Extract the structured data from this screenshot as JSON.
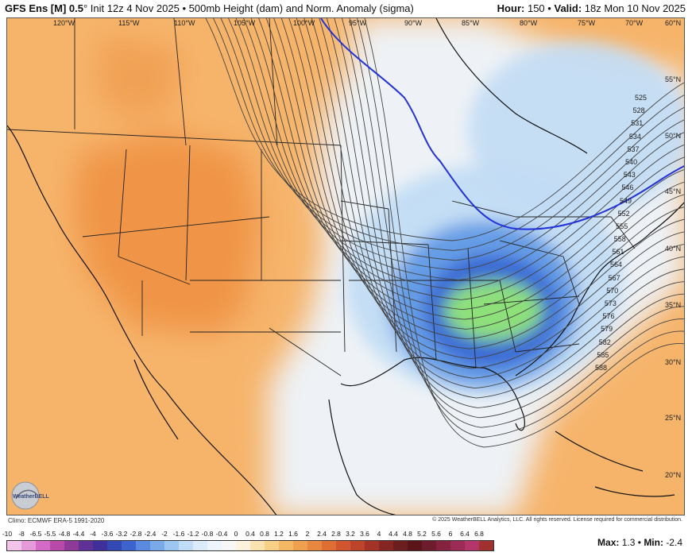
{
  "header": {
    "model": "GFS Ens [M] 0.5",
    "degree": "°",
    "init": "Init 12z 4 Nov 2025",
    "bullet": "•",
    "product": "500mb Height (dam) and Norm. Anomaly (sigma)",
    "hour_label": "Hour:",
    "hour_value": "150",
    "valid_label": "Valid:",
    "valid_value": "18z Mon 10 Nov 2025"
  },
  "longitudes": [
    "120°W",
    "115°W",
    "110°W",
    "105°W",
    "100°W",
    "95°W",
    "90°W",
    "85°W",
    "80°W",
    "75°W",
    "70°W"
  ],
  "latitudes": [
    "60°N",
    "55°N",
    "50°N",
    "45°N",
    "40°N",
    "35°N",
    "30°N",
    "25°N",
    "20°N"
  ],
  "contour_labels": [
    "525",
    "528",
    "531",
    "534",
    "537",
    "540",
    "543",
    "546",
    "549",
    "552",
    "555",
    "558",
    "561",
    "564",
    "567",
    "570",
    "573",
    "576",
    "579",
    "582",
    "585",
    "588"
  ],
  "footer": {
    "climo": "Climo: ECMWF ERA-5 1991-2020",
    "copyright": "© 2025 WeatherBELL Analytics, LLC. All rights reserved. License required for commercial distribution.",
    "logo_text": "WeatherBELL",
    "max_label": "Max:",
    "max_value": "1.3",
    "min_label": "Min:",
    "min_value": "-2.4"
  },
  "colorbar": {
    "labels": [
      "-10",
      "-8",
      "-6.5",
      "-5.5",
      "-4.8",
      "-4.4",
      "-4",
      "-3.6",
      "-3.2",
      "-2.8",
      "-2.4",
      "-2",
      "-1.6",
      "-1.2",
      "-0.8",
      "-0.4",
      "0",
      "0.4",
      "0.8",
      "1.2",
      "1.6",
      "2",
      "2.4",
      "2.8",
      "3.2",
      "3.6",
      "4",
      "4.4",
      "4.8",
      "5.2",
      "5.6",
      "6",
      "6.4",
      "6.8"
    ],
    "colors": [
      "#f2c4ea",
      "#e79ad9",
      "#d36bc6",
      "#b94aa8",
      "#8d3a98",
      "#5f3197",
      "#3f2f9b",
      "#3448b4",
      "#3d63cf",
      "#5a8ae0",
      "#7aa9ea",
      "#9cc5f1",
      "#c0dcf7",
      "#dcebf9",
      "#eef4fb",
      "#f7f7f7",
      "#fdf2dc",
      "#fbe3b0",
      "#f8cf86",
      "#f4b865",
      "#efa04f",
      "#e8873f",
      "#df6e35",
      "#d1562f",
      "#bd432b",
      "#a33327",
      "#862622",
      "#6c1d1e",
      "#5b1519",
      "#6e1b2d",
      "#85223f",
      "#9b2a55",
      "#b3356a",
      "#a0312f"
    ]
  },
  "colors": {
    "land_orange": "#f6b46b",
    "deep_orange": "#ef9445",
    "neutral": "#eef2f6",
    "blue_light": "#c2dcf4",
    "blue_mid": "#5b96e4",
    "blue_deep": "#2f5fd2",
    "green": "#8ee07a",
    "contour": "#444444",
    "zero_line": "#2433d8"
  }
}
